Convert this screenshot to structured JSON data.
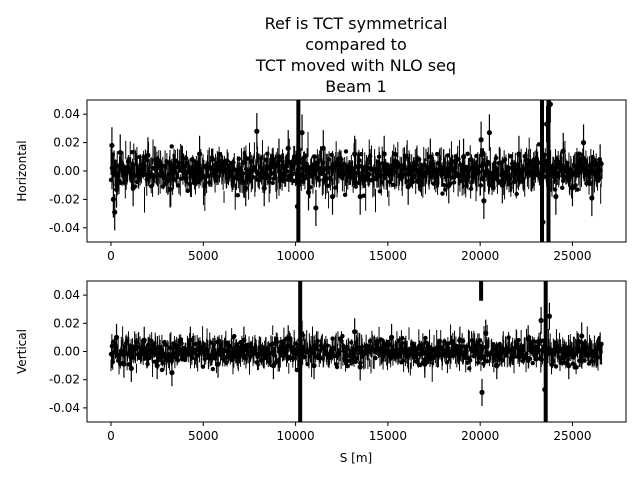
{
  "chart_data": {
    "type": "scatter",
    "title": [
      "Ref is TCT symmetrical",
      "compared to",
      "TCT moved with NLO seq",
      "Beam 1"
    ],
    "xlabel": "S [m]",
    "xlim": [
      -1300,
      27900
    ],
    "xticks": [
      0,
      5000,
      10000,
      15000,
      20000,
      25000
    ],
    "grid": false,
    "panels": [
      {
        "name": "horizontal",
        "ylabel": "Horizontal",
        "ylim": [
          -0.05,
          0.05
        ],
        "yticks": [
          -0.04,
          -0.02,
          0.0,
          0.02,
          0.04
        ],
        "baseline_noise": 0.006,
        "errorbar": 0.008,
        "points": [
          [
            50,
            0.018
          ],
          [
            130,
            -0.02
          ],
          [
            200,
            -0.029
          ],
          [
            300,
            -0.013
          ],
          [
            500,
            0.013
          ],
          [
            1200,
            -0.012
          ],
          [
            2000,
            0.011
          ],
          [
            3200,
            -0.013
          ],
          [
            4800,
            0.012
          ],
          [
            7300,
            -0.012
          ],
          [
            7900,
            0.028
          ],
          [
            8300,
            -0.012
          ],
          [
            9100,
            0.01
          ],
          [
            9600,
            0.016
          ],
          [
            10100,
            -0.025
          ],
          [
            10350,
            0.027
          ],
          [
            10700,
            -0.015
          ],
          [
            11100,
            -0.026
          ],
          [
            11500,
            0.016
          ],
          [
            12000,
            -0.018
          ],
          [
            13200,
            0.012
          ],
          [
            13500,
            -0.018
          ],
          [
            14800,
            0.012
          ],
          [
            16100,
            -0.011
          ],
          [
            17300,
            0.01
          ],
          [
            18300,
            -0.01
          ],
          [
            19100,
            0.01
          ],
          [
            20050,
            0.022
          ],
          [
            20200,
            -0.021
          ],
          [
            20500,
            0.027
          ],
          [
            21200,
            -0.01
          ],
          [
            22100,
            0.012
          ],
          [
            23400,
            -0.036
          ],
          [
            23600,
            0.033
          ],
          [
            23800,
            0.047
          ],
          [
            24100,
            -0.018
          ],
          [
            24500,
            0.014
          ],
          [
            25000,
            -0.012
          ],
          [
            25600,
            0.02
          ],
          [
            26050,
            -0.019
          ],
          [
            26500,
            0.006
          ]
        ],
        "spikes": [
          [
            10150,
            -0.05,
            0.05
          ],
          [
            20100,
            0.01,
            0.016
          ],
          [
            23350,
            -0.05,
            0.05
          ],
          [
            23700,
            -0.05,
            0.05
          ]
        ]
      },
      {
        "name": "vertical",
        "ylabel": "Vertical",
        "ylim": [
          -0.05,
          0.05
        ],
        "yticks": [
          -0.04,
          -0.02,
          0.0,
          0.02,
          0.04
        ],
        "baseline_noise": 0.0045,
        "errorbar": 0.006,
        "points": [
          [
            50,
            -0.002
          ],
          [
            300,
            0.01
          ],
          [
            700,
            -0.009
          ],
          [
            1100,
            -0.012
          ],
          [
            1800,
            0.008
          ],
          [
            2500,
            -0.01
          ],
          [
            3300,
            -0.015
          ],
          [
            4300,
            0.008
          ],
          [
            5800,
            -0.009
          ],
          [
            7200,
            0.008
          ],
          [
            8800,
            -0.01
          ],
          [
            9600,
            0.009
          ],
          [
            10350,
            0.012
          ],
          [
            11000,
            -0.01
          ],
          [
            13200,
            0.014
          ],
          [
            13500,
            -0.011
          ],
          [
            15200,
            0.01
          ],
          [
            17000,
            -0.009
          ],
          [
            18900,
            0.008
          ],
          [
            20100,
            -0.029
          ],
          [
            20300,
            0.013
          ],
          [
            20900,
            -0.01
          ],
          [
            22600,
            0.009
          ],
          [
            23300,
            0.022
          ],
          [
            23500,
            -0.027
          ],
          [
            23750,
            0.025
          ],
          [
            24800,
            -0.01
          ],
          [
            25500,
            0.011
          ],
          [
            26500,
            0.004
          ]
        ],
        "spikes": [
          [
            10250,
            -0.05,
            0.05
          ],
          [
            20050,
            0.036,
            0.05
          ],
          [
            23550,
            -0.05,
            0.05
          ]
        ]
      }
    ]
  }
}
